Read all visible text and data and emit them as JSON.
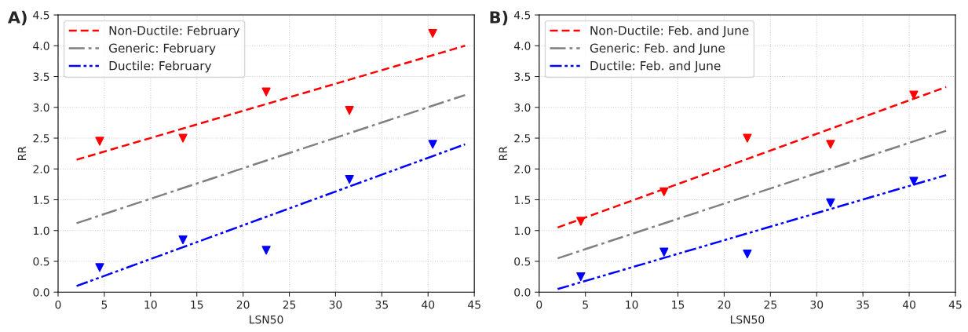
{
  "chart_data": [
    {
      "type": "scatter",
      "xlabel": "LSN50",
      "ylabel": "RR",
      "annotations": [
        "A)"
      ],
      "legend": "top left",
      "grid": true,
      "xlim": [
        0,
        45
      ],
      "ylim": [
        0,
        4.5
      ],
      "xticks": [
        0,
        5,
        10,
        15,
        20,
        25,
        30,
        35,
        40,
        45
      ],
      "yticks": [
        {
          "value": 0,
          "label": "0.0"
        },
        0.5,
        {
          "value": 1,
          "label": "1.0"
        },
        1.5,
        {
          "value": 2,
          "label": "2.0"
        },
        2.5,
        {
          "value": 3,
          "label": "3.0"
        },
        3.5,
        {
          "value": 4,
          "label": "4.0"
        },
        4.5
      ],
      "series": [
        {
          "type": "line",
          "name": "Non-Ductile: February",
          "color": "#ff0000",
          "line_style": "dashed",
          "x": [
            2,
            44
          ],
          "values": [
            2.15,
            4.0
          ]
        },
        {
          "type": "line",
          "name": "Generic: February",
          "color": "#808080",
          "line_style": "dashdot",
          "x": [
            2,
            44
          ],
          "values": [
            1.12,
            3.2
          ]
        },
        {
          "type": "line",
          "name": "Ductile: February",
          "color": "#0000ff",
          "line_style": "dashdotdot",
          "x": [
            2,
            44
          ],
          "values": [
            0.1,
            2.4
          ]
        },
        {
          "color": "#ff0000",
          "marker": "triangle",
          "x": [
            4.5,
            13.5,
            22.5,
            31.5,
            40.5
          ],
          "values": [
            2.45,
            2.5,
            3.25,
            2.95,
            4.2
          ]
        },
        {
          "color": "#0000ff",
          "marker": "triangle",
          "x": [
            4.5,
            13.5,
            22.5,
            31.5,
            40.5
          ],
          "values": [
            0.4,
            0.85,
            0.68,
            1.83,
            2.4
          ]
        }
      ]
    },
    {
      "type": "scatter",
      "xlabel": "LSN50",
      "ylabel": "RR",
      "annotations": [
        "B)"
      ],
      "legend": "top left",
      "grid": true,
      "xlim": [
        0,
        45
      ],
      "ylim": [
        0,
        4.5
      ],
      "xticks": [
        0,
        5,
        10,
        15,
        20,
        25,
        30,
        35,
        40,
        45
      ],
      "yticks": [
        {
          "value": 0,
          "label": "0.0"
        },
        0.5,
        {
          "value": 1,
          "label": "1.0"
        },
        1.5,
        {
          "value": 2,
          "label": "2.0"
        },
        2.5,
        {
          "value": 3,
          "label": "3.0"
        },
        3.5,
        {
          "value": 4,
          "label": "4.0"
        },
        4.5
      ],
      "series": [
        {
          "type": "line",
          "name": "Non-Ductile: Feb. and June",
          "color": "#ff0000",
          "line_style": "dashed",
          "x": [
            2,
            44
          ],
          "values": [
            1.05,
            3.33
          ]
        },
        {
          "type": "line",
          "name": "Generic: Feb. and June",
          "color": "#808080",
          "line_style": "dashdot",
          "x": [
            2,
            44
          ],
          "values": [
            0.55,
            2.62
          ]
        },
        {
          "type": "line",
          "name": "Ductile: Feb. and June",
          "color": "#0000ff",
          "line_style": "dashdotdot",
          "x": [
            2,
            44
          ],
          "values": [
            0.05,
            1.9
          ]
        },
        {
          "color": "#ff0000",
          "marker": "triangle",
          "x": [
            4.5,
            13.5,
            22.5,
            31.5,
            40.5
          ],
          "values": [
            1.15,
            1.63,
            2.5,
            2.4,
            3.2
          ]
        },
        {
          "color": "#0000ff",
          "marker": "triangle",
          "x": [
            4.5,
            13.5,
            22.5,
            31.5,
            40.5
          ],
          "values": [
            0.25,
            0.65,
            0.62,
            1.45,
            1.8
          ]
        }
      ]
    }
  ]
}
